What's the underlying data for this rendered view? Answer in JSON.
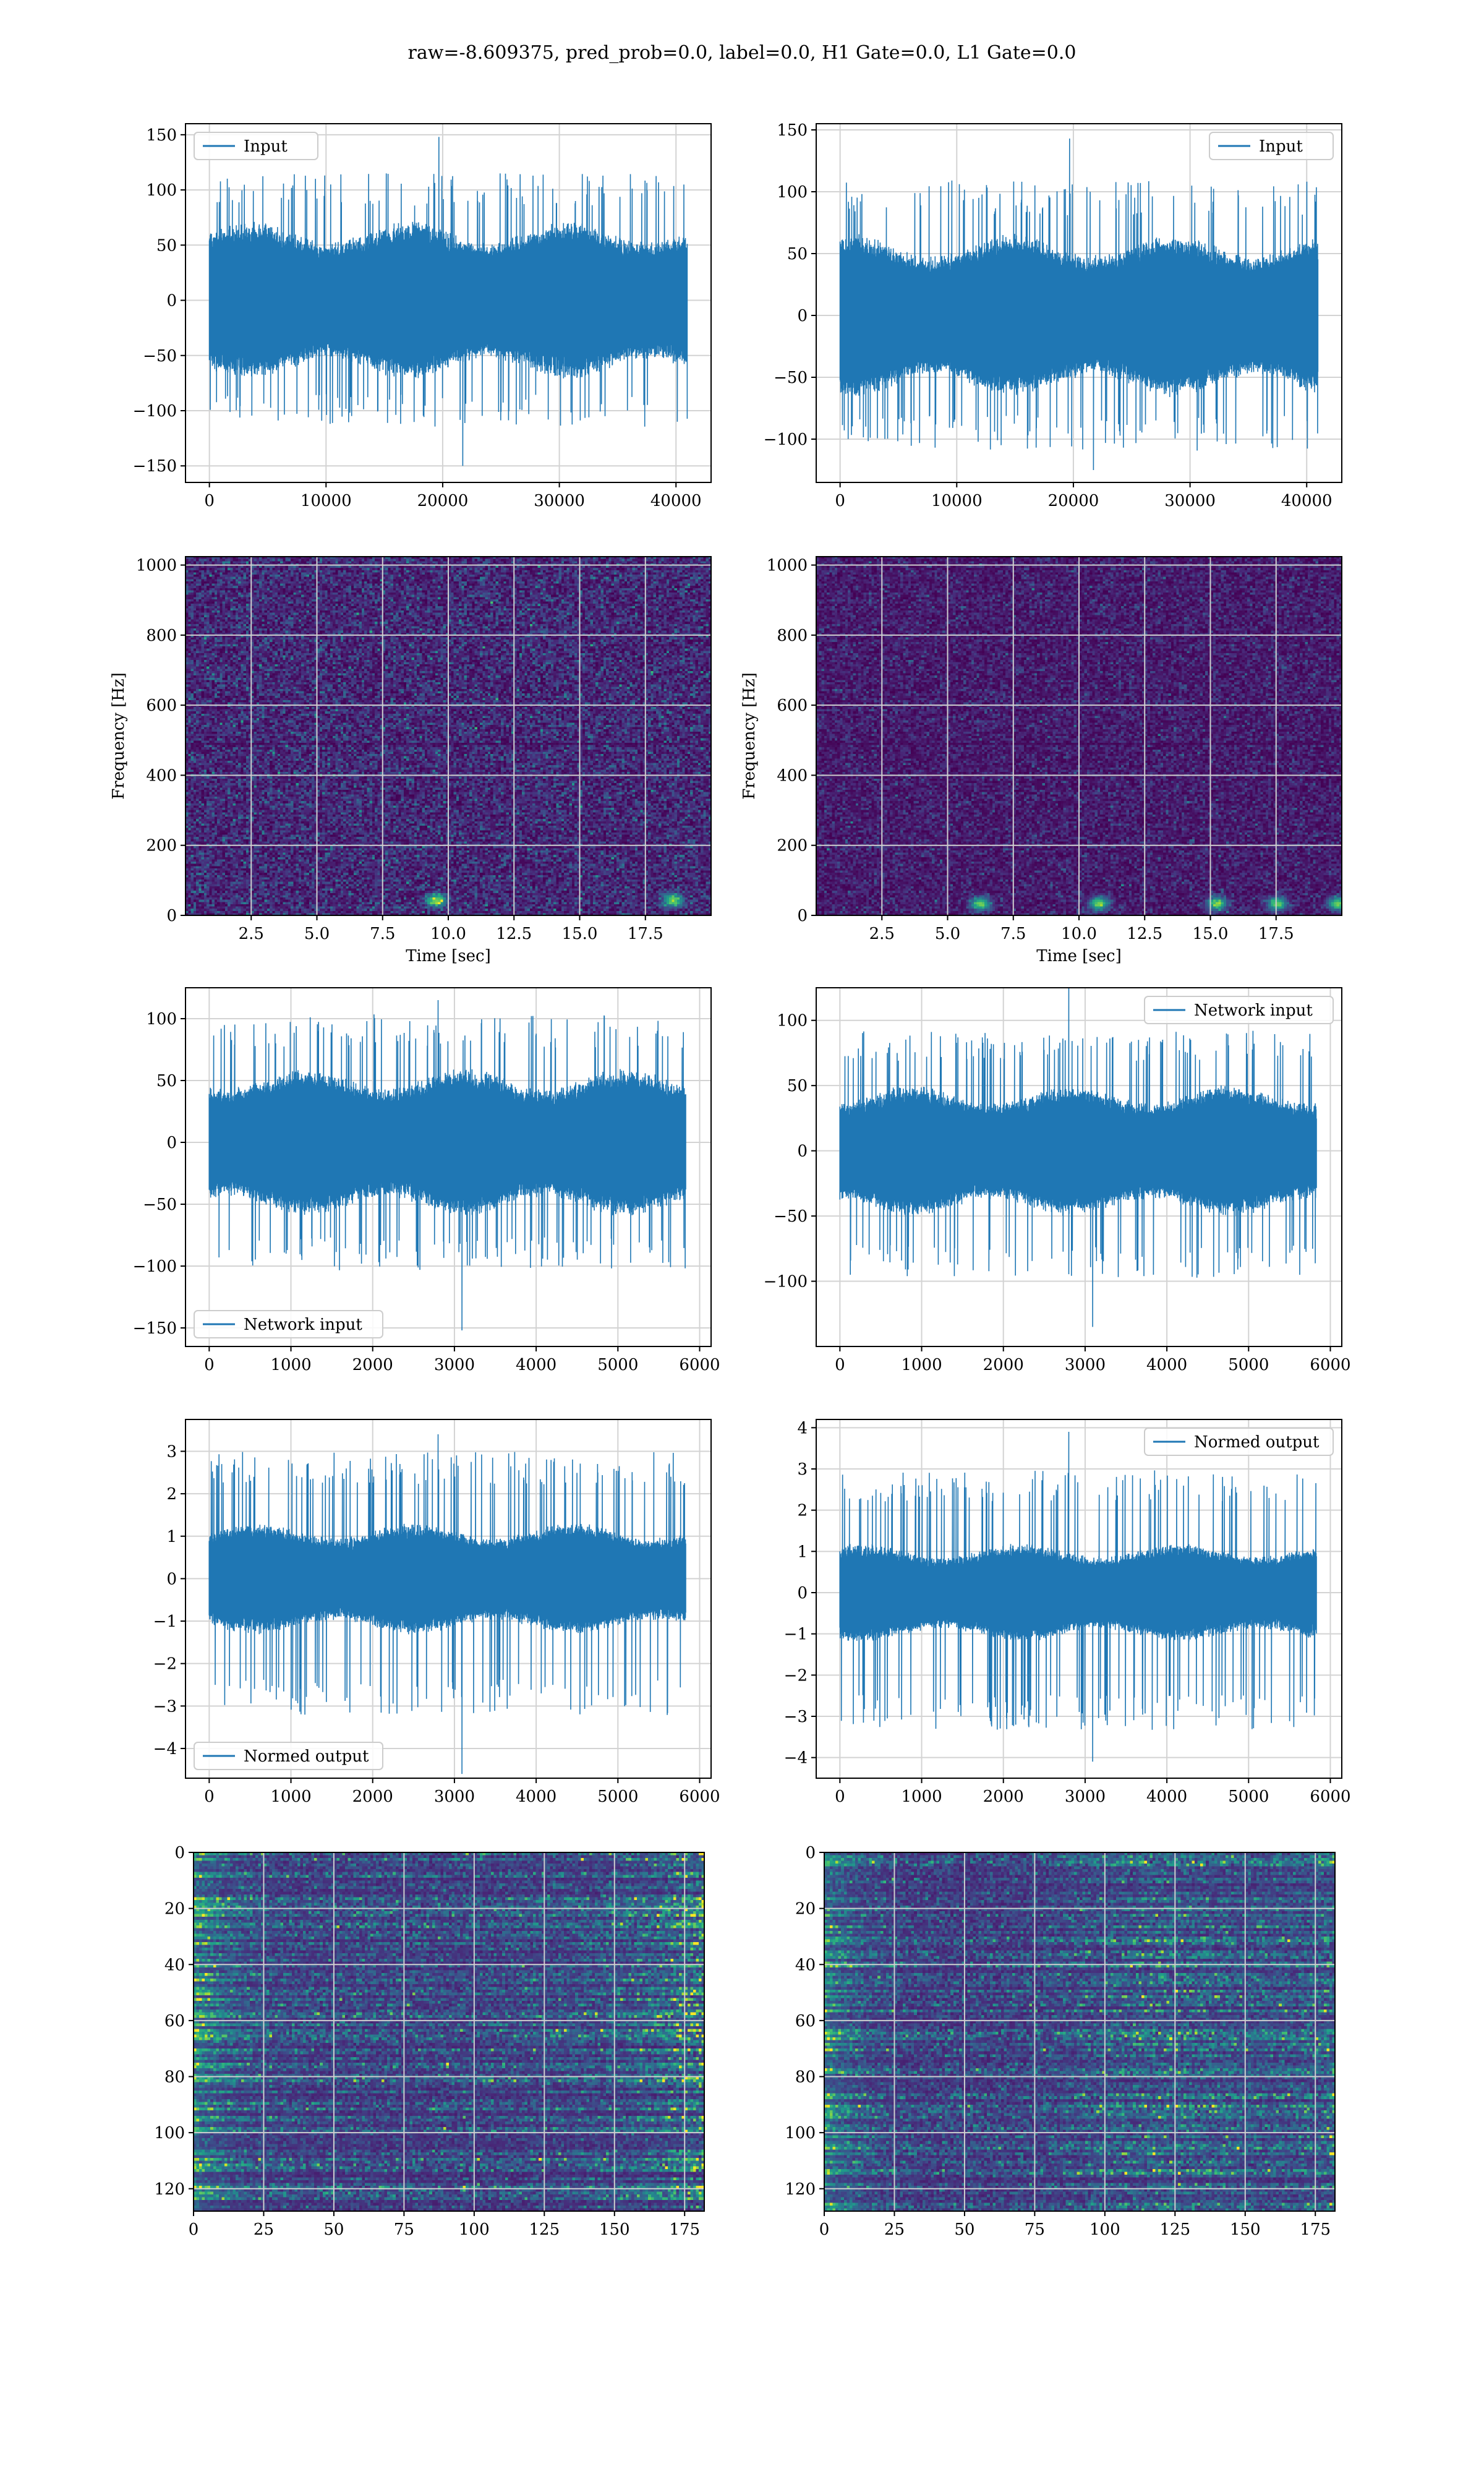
{
  "suptitle": "raw=-8.609375, pred_prob=0.0, label=0.0, H1 Gate=0.0, L1 Gate=0.0",
  "colors": {
    "line": "#1f77b4",
    "grid": "#d3d3d3",
    "viridis_dark": "#440154"
  },
  "chart_data": [
    {
      "id": "H1-input",
      "type": "line",
      "legend": "Input",
      "legend_position": "upper left",
      "xlim": [
        -2048,
        43008
      ],
      "ylim": [
        -165,
        160
      ],
      "xticks": [
        0,
        10000,
        20000,
        30000,
        40000
      ],
      "yticks": [
        -150,
        -100,
        -50,
        0,
        50,
        100,
        150
      ],
      "n_points": 40960,
      "grid": true,
      "envelope": {
        "typical_amplitude": 60,
        "peak_max": 148,
        "peak_min": -150,
        "spikes_upper": 100,
        "spikes_lower": -100,
        "x_end": 40960
      }
    },
    {
      "id": "L1-input",
      "type": "line",
      "legend": "Input",
      "legend_position": "upper right",
      "xlim": [
        -2048,
        43008
      ],
      "ylim": [
        -135,
        155
      ],
      "xticks": [
        0,
        10000,
        20000,
        30000,
        40000
      ],
      "yticks": [
        -100,
        -50,
        0,
        50,
        100,
        150
      ],
      "n_points": 40960,
      "grid": true,
      "envelope": {
        "typical_amplitude": 55,
        "peak_max": 143,
        "peak_min": -125,
        "spikes_upper": 95,
        "spikes_lower": -95,
        "x_end": 40960
      }
    },
    {
      "id": "H1-spectrogram",
      "type": "heatmap",
      "colormap": "viridis",
      "xlabel": "Time [sec]",
      "ylabel": "Frequency [Hz]",
      "xlim": [
        0,
        20
      ],
      "ylim": [
        0,
        1024
      ],
      "xticks": [
        2.5,
        5.0,
        7.5,
        10.0,
        12.5,
        15.0,
        17.5
      ],
      "xtick_labels": [
        "2.5",
        "5.0",
        "7.5",
        "10.0",
        "12.5",
        "15.0",
        "17.5"
      ],
      "yticks": [
        0,
        200,
        400,
        600,
        800,
        1000
      ],
      "grid": true,
      "grid_color": "#cfcfcf",
      "hot_spots": [
        [
          9.5,
          40
        ],
        [
          18.5,
          40
        ]
      ],
      "noise_level": 0.18
    },
    {
      "id": "L1-spectrogram",
      "type": "heatmap",
      "colormap": "viridis",
      "xlabel": "Time [sec]",
      "ylabel": "Frequency [Hz]",
      "xlim": [
        0,
        20
      ],
      "ylim": [
        0,
        1024
      ],
      "xticks": [
        2.5,
        5.0,
        7.5,
        10.0,
        12.5,
        15.0,
        17.5
      ],
      "xtick_labels": [
        "2.5",
        "5.0",
        "7.5",
        "10.0",
        "12.5",
        "15.0",
        "17.5"
      ],
      "yticks": [
        0,
        200,
        400,
        600,
        800,
        1000
      ],
      "grid": true,
      "grid_color": "#cfcfcf",
      "hot_spots": [
        [
          6.2,
          30
        ],
        [
          10.7,
          30
        ],
        [
          15.2,
          30
        ],
        [
          17.5,
          30
        ],
        [
          19.8,
          30
        ]
      ],
      "noise_level": 0.12
    },
    {
      "id": "H1-network-input",
      "type": "line",
      "legend": "Network input",
      "legend_position": "lower left",
      "xlim": [
        -290,
        6140
      ],
      "ylim": [
        -165,
        125
      ],
      "xticks": [
        0,
        1000,
        2000,
        3000,
        4000,
        5000,
        6000
      ],
      "yticks": [
        -150,
        -100,
        -50,
        0,
        50,
        100
      ],
      "n_points": 5830,
      "grid": true,
      "envelope": {
        "typical_amplitude": 50,
        "peak_max": 115,
        "peak_min": -152,
        "spikes_upper": 90,
        "spikes_lower": -90,
        "x_end": 5830
      }
    },
    {
      "id": "L1-network-input",
      "type": "line",
      "legend": "Network input",
      "legend_position": "upper right",
      "xlim": [
        -290,
        6140
      ],
      "ylim": [
        -150,
        125
      ],
      "xticks": [
        0,
        1000,
        2000,
        3000,
        4000,
        5000,
        6000
      ],
      "yticks": [
        -100,
        -50,
        0,
        50,
        100
      ],
      "n_points": 5830,
      "grid": true,
      "envelope": {
        "typical_amplitude": 42,
        "peak_max": 127,
        "peak_min": -135,
        "spikes_upper": 80,
        "spikes_lower": -85,
        "x_end": 5830
      }
    },
    {
      "id": "H1-normed-output",
      "type": "line",
      "legend": "Normed output",
      "legend_position": "lower left",
      "xlim": [
        -290,
        6140
      ],
      "ylim": [
        -4.7,
        3.75
      ],
      "xticks": [
        0,
        1000,
        2000,
        3000,
        4000,
        5000,
        6000
      ],
      "yticks": [
        -4,
        -3,
        -2,
        -1,
        0,
        1,
        2,
        3
      ],
      "n_points": 5830,
      "grid": true,
      "envelope": {
        "typical_amplitude": 1.1,
        "peak_max": 3.4,
        "peak_min": -4.6,
        "spikes_upper": 2.6,
        "spikes_lower": -2.8,
        "x_end": 5830
      }
    },
    {
      "id": "L1-normed-output",
      "type": "line",
      "legend": "Normed output",
      "legend_position": "upper right",
      "xlim": [
        -290,
        6140
      ],
      "ylim": [
        -4.5,
        4.2
      ],
      "xticks": [
        0,
        1000,
        2000,
        3000,
        4000,
        5000,
        6000
      ],
      "yticks": [
        -4,
        -3,
        -2,
        -1,
        0,
        1,
        2,
        3,
        4
      ],
      "n_points": 5830,
      "grid": true,
      "envelope": {
        "typical_amplitude": 1.0,
        "peak_max": 3.9,
        "peak_min": -4.1,
        "spikes_upper": 2.6,
        "spikes_lower": -2.9,
        "x_end": 5830
      }
    },
    {
      "id": "H1-feature-map",
      "type": "heatmap",
      "colormap": "viridis",
      "y_inverted": true,
      "xlim": [
        0,
        182
      ],
      "ylim": [
        128,
        0
      ],
      "xticks": [
        0,
        25,
        50,
        75,
        100,
        125,
        150,
        175
      ],
      "yticks": [
        0,
        20,
        40,
        60,
        80,
        100,
        120
      ],
      "grid": true,
      "grid_color": "#cfcfcf",
      "structure": "bright horizontal streaks at left edge (x<25) and right edge (x>140)"
    },
    {
      "id": "L1-feature-map",
      "type": "heatmap",
      "colormap": "viridis",
      "y_inverted": true,
      "xlim": [
        0,
        182
      ],
      "ylim": [
        128,
        0
      ],
      "xticks": [
        0,
        25,
        50,
        75,
        100,
        125,
        150,
        175
      ],
      "yticks": [
        0,
        20,
        40,
        60,
        80,
        100,
        120
      ],
      "grid": true,
      "grid_color": "#cfcfcf",
      "structure": "bright streaks at left edge (x<20) and scattered activity in x 90-175"
    }
  ]
}
